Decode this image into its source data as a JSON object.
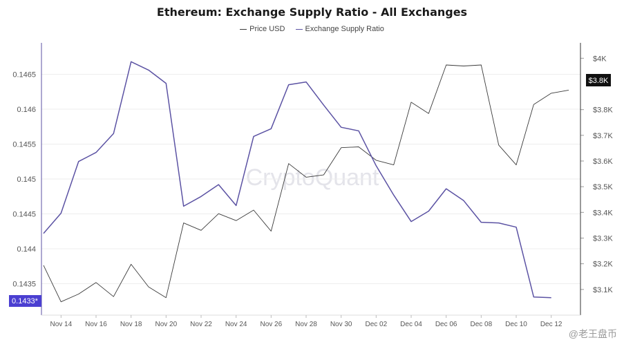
{
  "chart_data": {
    "type": "line",
    "title": "Ethereum: Exchange Supply Ratio - All Exchanges",
    "watermark": "CryptoQuant",
    "corner_watermark": "@老王盘币",
    "colors": {
      "price": "#3a3a3a",
      "ratio": "#5b52a3",
      "badge": "#4b3fd1",
      "grid": "#ededed"
    },
    "x": [
      "Nov 13",
      "Nov 14",
      "Nov 15",
      "Nov 16",
      "Nov 17",
      "Nov 18",
      "Nov 19",
      "Nov 20",
      "Nov 21",
      "Nov 22",
      "Nov 23",
      "Nov 24",
      "Nov 25",
      "Nov 26",
      "Nov 27",
      "Nov 28",
      "Nov 29",
      "Nov 30",
      "Dec 01",
      "Dec 02",
      "Dec 03",
      "Dec 04",
      "Dec 05",
      "Dec 06",
      "Dec 07",
      "Dec 08",
      "Dec 09",
      "Dec 10",
      "Dec 11",
      "Dec 12",
      "Dec 13"
    ],
    "x_tick_labels": [
      "Nov 14",
      "Nov 16",
      "Nov 18",
      "Nov 20",
      "Nov 22",
      "Nov 24",
      "Nov 26",
      "Nov 28",
      "Nov 30",
      "Dec 02",
      "Dec 04",
      "Dec 06",
      "Dec 08",
      "Dec 10",
      "Dec 12"
    ],
    "series": [
      {
        "name": "Price USD",
        "axis": "right",
        "values": [
          3194,
          3052,
          3082,
          3127,
          3072,
          3198,
          3110,
          3068,
          3359,
          3330,
          3395,
          3368,
          3409,
          3327,
          3590,
          3537,
          3546,
          3652,
          3655,
          3603,
          3585,
          3829,
          3785,
          3974,
          3970,
          3974,
          3662,
          3585,
          3820,
          3864,
          3876
        ]
      },
      {
        "name": "Exchange Supply Ratio",
        "axis": "left",
        "values": [
          0.14422,
          0.14451,
          0.14525,
          0.14538,
          0.14565,
          0.14668,
          0.14656,
          0.14637,
          0.14461,
          0.14475,
          0.14492,
          0.14462,
          0.14561,
          0.14572,
          0.14635,
          0.14639,
          0.14606,
          0.14574,
          0.14569,
          0.14519,
          0.14477,
          0.14439,
          0.14454,
          0.14486,
          0.14469,
          0.14438,
          0.14437,
          0.14431,
          0.14331,
          0.1433,
          null
        ]
      }
    ],
    "y_left": {
      "ticks": [
        0.1435,
        0.144,
        0.1445,
        0.145,
        0.1455,
        0.146,
        0.1465
      ],
      "tick_labels": [
        "0.1435",
        "0.144",
        "0.1445",
        "0.145",
        "0.1455",
        "0.146",
        "0.1465"
      ],
      "range": [
        0.14305,
        0.14695
      ]
    },
    "y_right": {
      "ticks": [
        3100,
        3200,
        3300,
        3400,
        3500,
        3600,
        3700,
        3800,
        4000
      ],
      "tick_labels": [
        "$3.1K",
        "$3.2K",
        "$3.3K",
        "$3.4K",
        "$3.5K",
        "$3.6K",
        "$3.7K",
        "$3.8K",
        "$4K"
      ],
      "range": [
        3000,
        4060
      ]
    },
    "last_value_badges": {
      "left": "0.1433*",
      "right": "$3.8K"
    },
    "grid": true,
    "legend_position": "top-center"
  }
}
